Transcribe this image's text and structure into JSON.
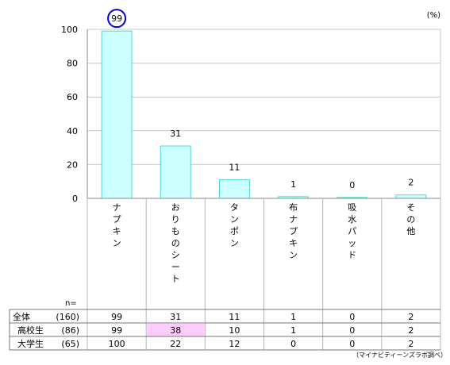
{
  "chart_data": {
    "type": "bar",
    "unit": "(%)",
    "categories": [
      "ナプキン",
      "おりものシート",
      "タンポン",
      "布ナプキン",
      "吸水パッド",
      "その他"
    ],
    "values": [
      99,
      31,
      11,
      1,
      0,
      2
    ],
    "ylim": [
      0,
      100
    ],
    "yticks": [
      0,
      20,
      40,
      60,
      80,
      100
    ],
    "grid": true,
    "bar_color": "#ccffff",
    "bar_stroke": "#33cccc",
    "highlight_circle_color": "#0000cc",
    "highlight_cell_color": "#ffccff"
  },
  "table": {
    "n_label": "n=",
    "rows": [
      {
        "label": "全体",
        "n": "(160)",
        "values": [
          "99",
          "31",
          "11",
          "1",
          "0",
          "2"
        ]
      },
      {
        "label": "高校生",
        "n": "(86)",
        "values": [
          "99",
          "38",
          "10",
          "1",
          "0",
          "2"
        ],
        "highlight_col": 1
      },
      {
        "label": "大学生",
        "n": "(65)",
        "values": [
          "100",
          "22",
          "12",
          "0",
          "0",
          "2"
        ]
      }
    ]
  },
  "source": "（マイナビティーンズラボ調べ）"
}
